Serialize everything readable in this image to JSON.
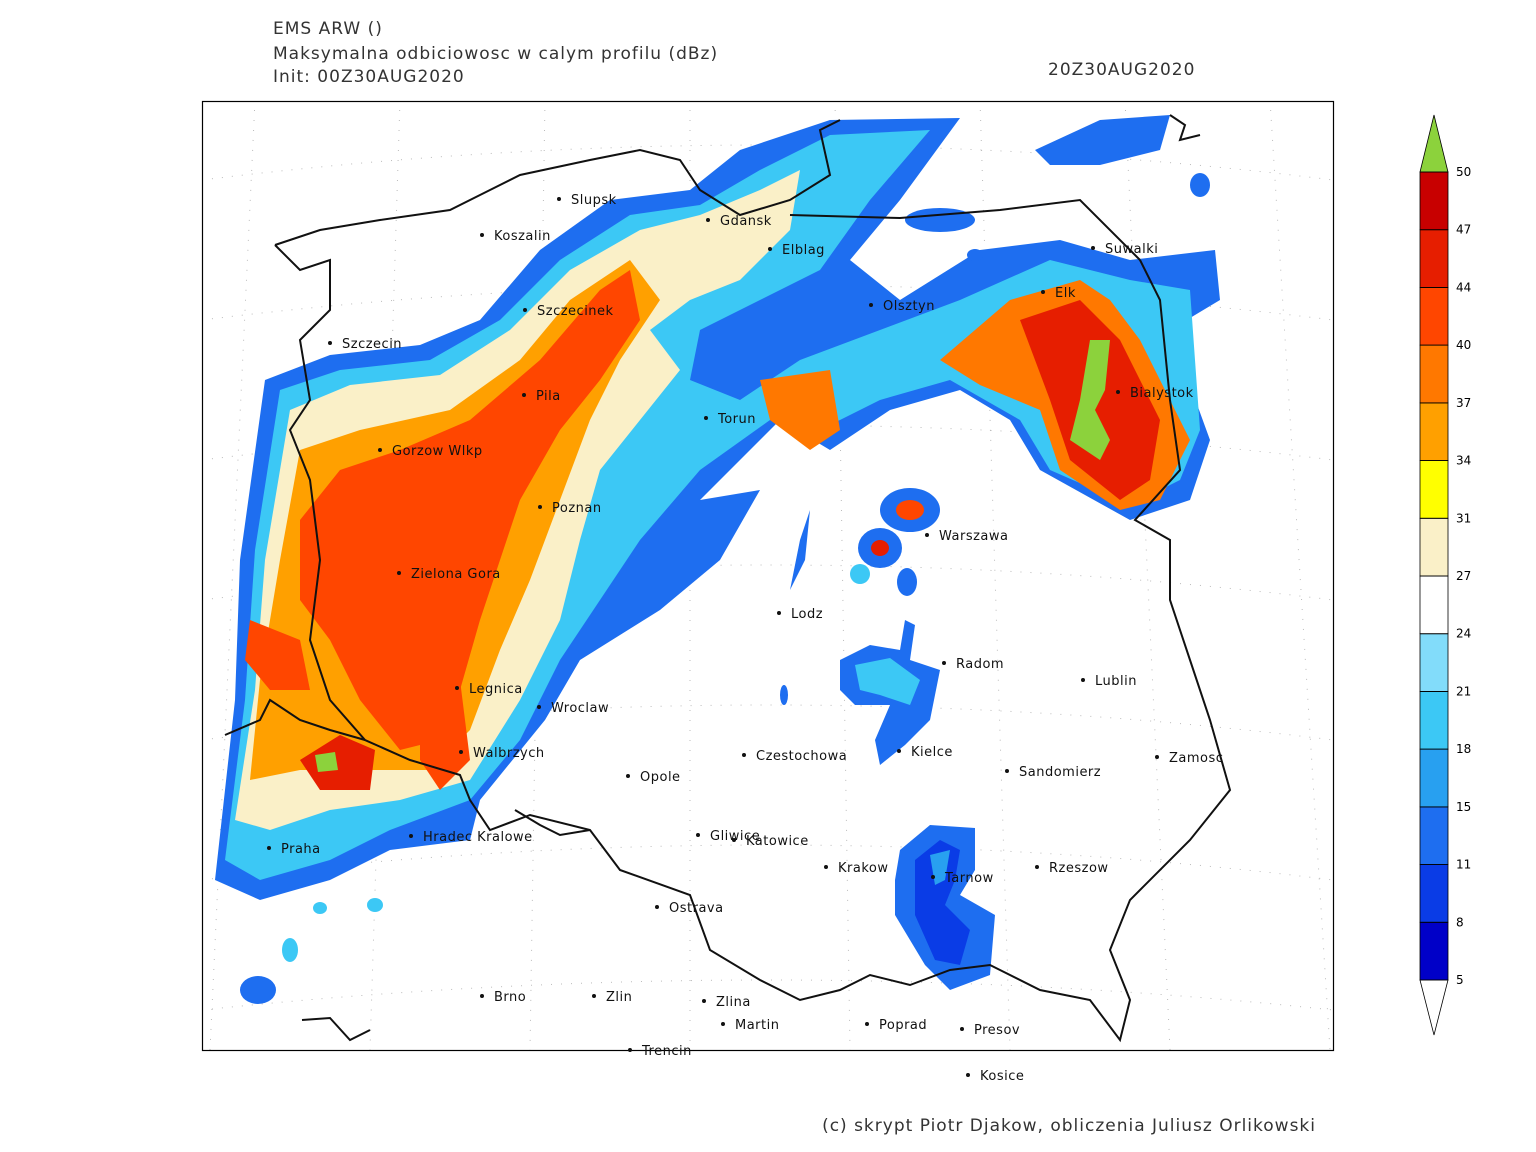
{
  "header": {
    "title": "EMS ARW ()",
    "subtitle": "Maksymalna odbiciowosc w calym profilu (dBz)",
    "init": "Init: 00Z30AUG2020",
    "valid_time": "20Z30AUG2020"
  },
  "cities": [
    "Slupsk",
    "Koszalin",
    "Gdansk",
    "Elblag",
    "Suwalki",
    "Szczecinek",
    "Olsztyn",
    "Elk",
    "Szczecin",
    "Pila",
    "Bialystok",
    "Torun",
    "Gorzow Wlkp",
    "Poznan",
    "Warszawa",
    "Zielona Gora",
    "Lodz",
    "Radom",
    "Lublin",
    "Legnica",
    "Wroclaw",
    "Walbrzych",
    "Czestochowa",
    "Kielce",
    "Zamosc",
    "Opole",
    "Sandomierz",
    "Hradec Kralowe",
    "Gliwice",
    "Katowice",
    "Praha",
    "Krakow",
    "Rzeszow",
    "Tarnow",
    "Ostrava",
    "Brno",
    "Zlin",
    "Zlina",
    "Martin",
    "Poprad",
    "Presov",
    "Trencin",
    "Kosice"
  ],
  "colorbar": {
    "levels": [
      5,
      8,
      11,
      15,
      18,
      21,
      24,
      27,
      31,
      34,
      37,
      40,
      44,
      47,
      50
    ],
    "colors": [
      "#0000c8",
      "#0a3ce6",
      "#1e6ef0",
      "#28a0f0",
      "#3cc8f5",
      "#82dcfa",
      "#ffffff",
      "#faf0c8",
      "#ffff00",
      "#ffa000",
      "#ff7800",
      "#ff4600",
      "#e61e00",
      "#c80000"
    ],
    "over_color": "#8cd23c",
    "under_color": "#ffffff"
  },
  "footer": {
    "credit": "(c) skrypt Piotr Djakow, obliczenia Juliusz Orlikowski"
  }
}
